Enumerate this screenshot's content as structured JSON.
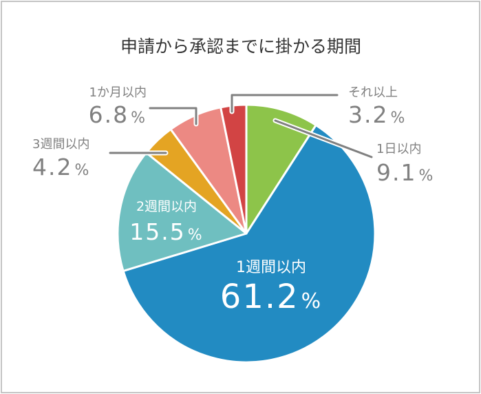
{
  "chart_data": {
    "type": "pie",
    "title": "申請から承認までに掛かる期間",
    "start": "top",
    "direction": "clockwise",
    "slices": [
      {
        "label": "1日以内",
        "value": 9.1,
        "display": "9.1",
        "color": "#8dc44a"
      },
      {
        "label": "1週間以内",
        "value": 61.2,
        "display": "61.2",
        "color": "#228bc2"
      },
      {
        "label": "2週間以内",
        "value": 15.5,
        "display": "15.5",
        "color": "#6fbfc0"
      },
      {
        "label": "3週間以内",
        "value": 4.2,
        "display": "4.2",
        "color": "#e4a423"
      },
      {
        "label": "1か月以内",
        "value": 6.8,
        "display": "6.8",
        "color": "#ec8983"
      },
      {
        "label": "それ以上",
        "value": 3.2,
        "display": "3.2",
        "color": "#d24444"
      }
    ],
    "unit": "%"
  }
}
